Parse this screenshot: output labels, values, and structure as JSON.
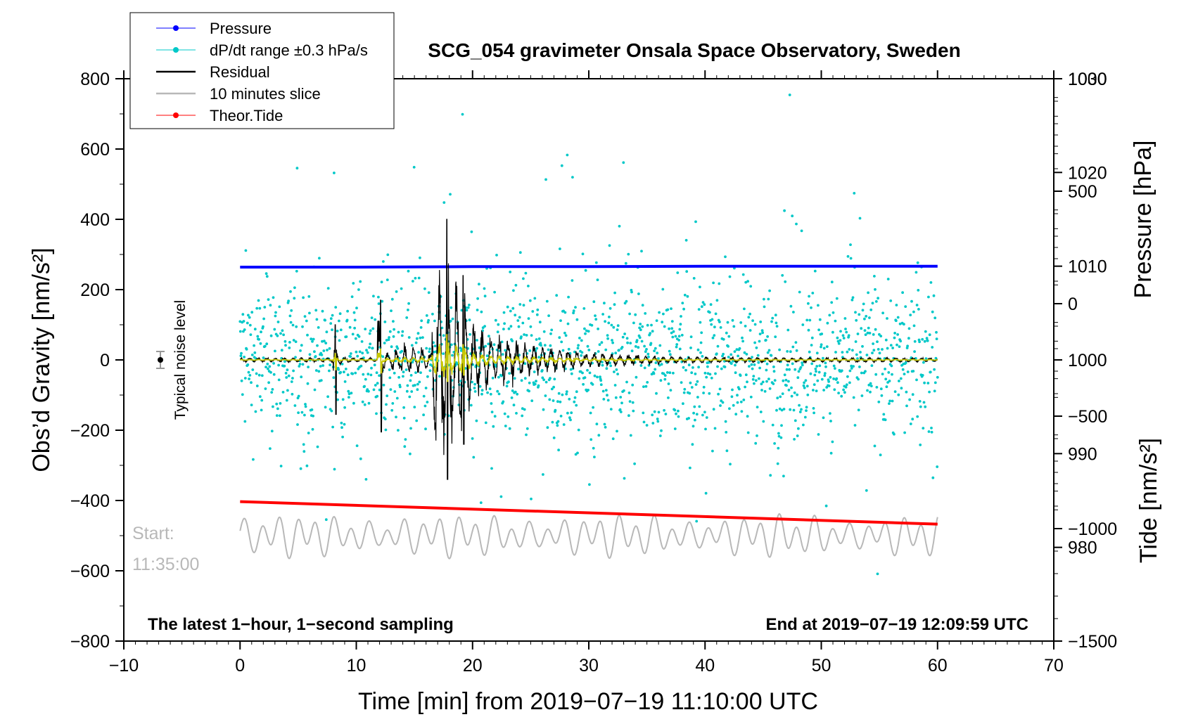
{
  "chart_data": {
    "type": "line",
    "title": "SCG_054 gravimeter Onsala Space Observatory, Sweden",
    "xlabel": "Time [min] from 2019−07−19 11:10:00 UTC",
    "ylabel_left": "Obs’d Gravity [nm/s²]",
    "ylabel_right_top": "Pressure [hPa]",
    "ylabel_right_bottom": "Tide [nm/s²]",
    "xlim": [
      -10,
      70
    ],
    "ylim_left": [
      -800,
      800
    ],
    "ylim_pressure": [
      970,
      1030
    ],
    "ylim_tide": [
      -1500,
      1000
    ],
    "x_ticks": [
      -10,
      0,
      10,
      20,
      30,
      40,
      50,
      60,
      70
    ],
    "x_tick_labels": [
      "−10",
      "0",
      "10",
      "20",
      "30",
      "40",
      "50",
      "60",
      "70"
    ],
    "y_left_ticks": [
      800,
      600,
      400,
      200,
      0,
      -200,
      -400,
      -600,
      -800
    ],
    "y_left_tick_labels": [
      "800",
      "600",
      "400",
      "200",
      "0",
      "−200",
      "−400",
      "−600",
      "−800"
    ],
    "pressure_ticks": [
      1030,
      1020,
      1010,
      1000,
      990,
      980
    ],
    "pressure_tick_labels": [
      "1030",
      "1020",
      "1010",
      "1000",
      "990",
      "980"
    ],
    "tide_ticks": [
      1000,
      500,
      0,
      -500,
      -1000,
      -1500
    ],
    "tide_tick_labels": [
      "1000",
      "500",
      "0",
      "−500",
      "−1000",
      "−1500"
    ],
    "legend": {
      "position": "top-left",
      "entries": [
        {
          "label": "Pressure",
          "color": "#0000ff",
          "marker": "dot"
        },
        {
          "label": "dP/dt range ±0.3 hPa/s",
          "color": "#00c8c8",
          "marker": "dot"
        },
        {
          "label": "Residual",
          "color": "#000000",
          "marker": "line"
        },
        {
          "label": "10 minutes slice",
          "color": "#b8b8b8",
          "marker": "line"
        },
        {
          "label": "Theor.Tide",
          "color": "#ff0000",
          "marker": "dot"
        }
      ]
    },
    "series": [
      {
        "name": "Pressure",
        "axis": "pressure",
        "color": "#0000ff",
        "x": [
          0,
          10,
          20,
          30,
          40,
          50,
          60
        ],
        "y": [
          1009.9,
          1009.9,
          1009.95,
          1009.95,
          1010.0,
          1010.0,
          1010.0
        ]
      },
      {
        "name": "dP/dt range ±0.3 hPa/s",
        "axis": "pressure",
        "color": "#00c8c8",
        "center": 1000,
        "spread": 8,
        "x_range": [
          0,
          60
        ]
      },
      {
        "name": "Residual",
        "axis": "left",
        "color": "#000000",
        "events": [
          {
            "x": 8.2,
            "min": -155,
            "max": 100
          },
          {
            "x": 12.1,
            "min": -205,
            "max": 170
          },
          {
            "x": 17.8,
            "min": -340,
            "max": 400
          },
          {
            "x": 19.2,
            "min": -240,
            "max": 240
          }
        ]
      },
      {
        "name": "10 minutes slice",
        "axis": "left",
        "color": "#b8b8b8",
        "center": -500,
        "amplitude": 60,
        "x_range": [
          0,
          60
        ]
      },
      {
        "name": "Theor.Tide",
        "axis": "tide",
        "color": "#ff0000",
        "x": [
          0,
          60
        ],
        "y": [
          -880,
          -980
        ]
      }
    ],
    "annotations": {
      "start_label": "Start:",
      "start_time": "11:35:00",
      "noise_label": "Typical noise level",
      "bottom_left": "The latest 1−hour, 1−second sampling",
      "bottom_right": "End at 2019−07−19 12:09:59 UTC"
    }
  }
}
